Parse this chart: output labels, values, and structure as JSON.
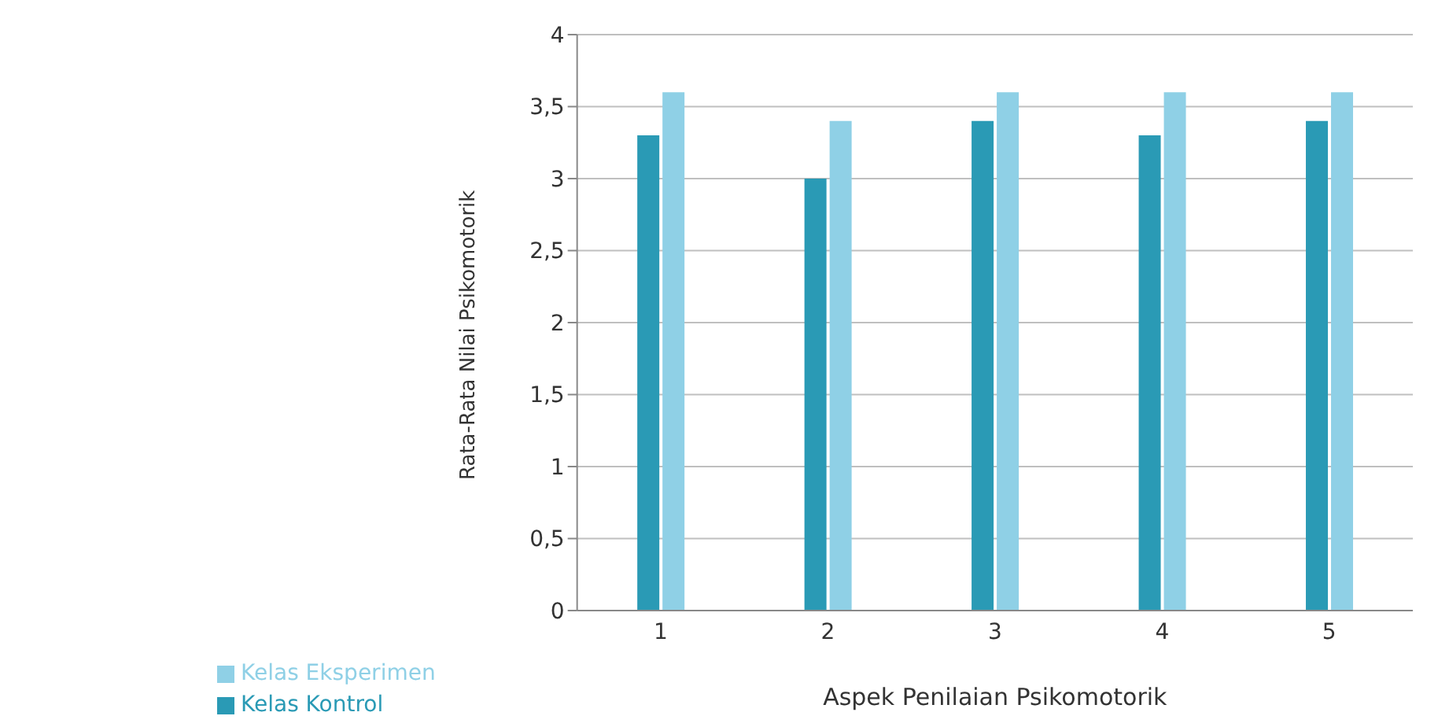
{
  "chart_data": {
    "type": "bar",
    "xlabel": "Aspek Penilaian Psikomotorik",
    "ylabel": "Rata-Rata Nilai Psikomotorik",
    "categories": [
      "1",
      "2",
      "3",
      "4",
      "5"
    ],
    "series": [
      {
        "name": "Kelas Kontrol",
        "color": "#2a9ab5",
        "values": [
          3.3,
          3.0,
          3.4,
          3.3,
          3.4
        ]
      },
      {
        "name": "Kelas Eksperimen",
        "color": "#8fd0e6",
        "values": [
          3.6,
          3.4,
          3.6,
          3.6,
          3.6
        ]
      }
    ],
    "ylim": [
      0,
      4
    ],
    "yticks": [
      {
        "value": 0,
        "label": "0"
      },
      {
        "value": 0.5,
        "label": "0,5"
      },
      {
        "value": 1,
        "label": "1"
      },
      {
        "value": 1.5,
        "label": "1,5"
      },
      {
        "value": 2,
        "label": "2"
      },
      {
        "value": 2.5,
        "label": "2,5"
      },
      {
        "value": 3,
        "label": "3"
      },
      {
        "value": 3.5,
        "label": "3,5"
      },
      {
        "value": 4,
        "label": "4"
      }
    ],
    "grid": "y",
    "legend": "bottom left"
  }
}
